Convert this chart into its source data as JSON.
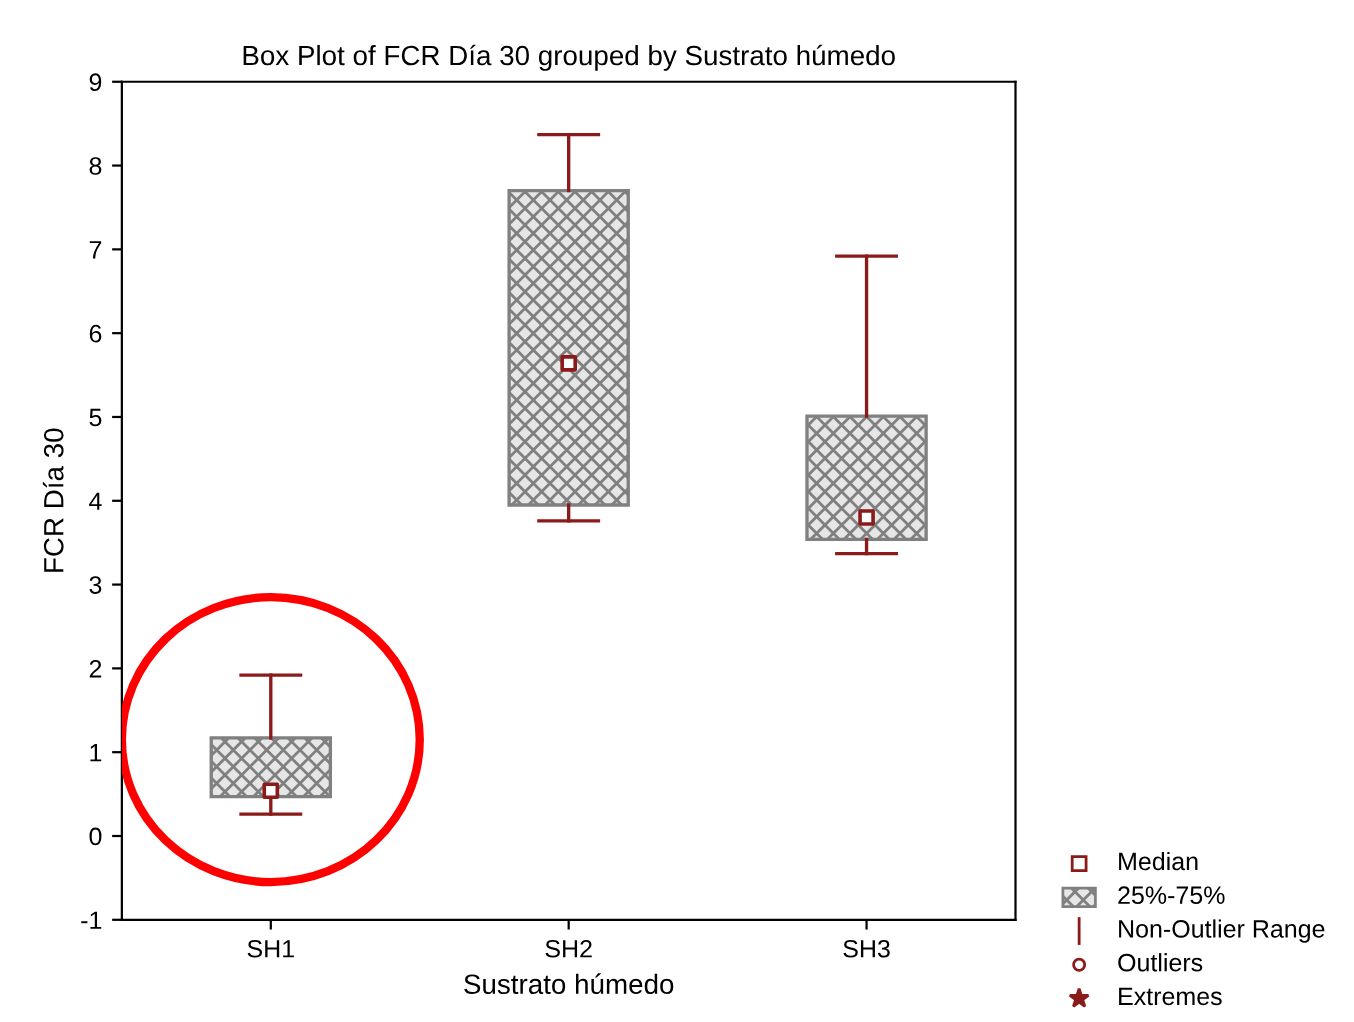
{
  "chart_data": {
    "type": "box",
    "title": "Box Plot of FCR Día 30 grouped by Sustrato húmedo",
    "xlabel": "Sustrato húmedo",
    "ylabel": "FCR Día 30",
    "categories": [
      "SH1",
      "SH2",
      "SH3"
    ],
    "boxes": [
      {
        "low": 0.26,
        "q1": 0.47,
        "median": 0.54,
        "q3": 1.17,
        "high": 1.92
      },
      {
        "low": 3.76,
        "q1": 3.95,
        "median": 5.64,
        "q3": 7.7,
        "high": 8.37
      },
      {
        "low": 3.37,
        "q1": 3.54,
        "median": 3.8,
        "q3": 5.01,
        "high": 6.92
      }
    ],
    "ylim": [
      -1,
      9
    ],
    "yticks": [
      -1,
      0,
      1,
      2,
      3,
      4,
      5,
      6,
      7,
      8,
      9
    ],
    "grid": false,
    "color": "#808080",
    "annotations": [
      "Median",
      "25%-75%",
      "Non-Outlier Range",
      "Outliers",
      "Extremes"
    ]
  }
}
